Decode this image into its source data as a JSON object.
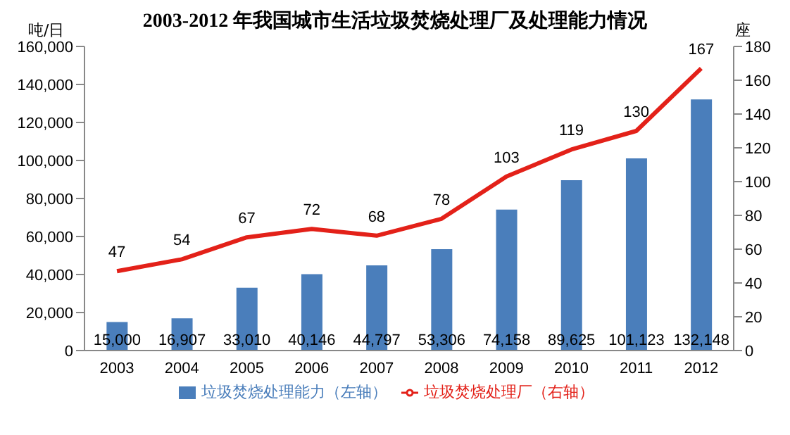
{
  "chart_data": {
    "type": "bar",
    "title": "2003-2012 年我国城市生活垃圾焚烧处理厂及处理能力情况",
    "ylabel": "吨/日",
    "y2label": "座",
    "categories": [
      "2003",
      "2004",
      "2005",
      "2006",
      "2007",
      "2008",
      "2009",
      "2010",
      "2011",
      "2012"
    ],
    "series": [
      {
        "name": "垃圾焚烧处理能力（左轴）",
        "color": "#4a7ebb",
        "values": [
          15000,
          16907,
          33010,
          40146,
          44797,
          53306,
          74158,
          89625,
          101123,
          132148
        ],
        "value_labels": [
          "15,000",
          "16,907",
          "33,010",
          "40,146",
          "44,797",
          "53,306",
          "74,158",
          "89,625",
          "101,123",
          "132,148"
        ]
      },
      {
        "name": "垃圾焚烧处理厂（右轴）",
        "type": "line",
        "axis": "y2",
        "color": "#e32119",
        "values": [
          47,
          54,
          67,
          72,
          68,
          78,
          103,
          119,
          130,
          167
        ]
      }
    ],
    "ylim": [
      0,
      160000
    ],
    "yticks": [
      {
        "value": 0,
        "label": "0"
      },
      {
        "value": 20000,
        "label": "20,000"
      },
      {
        "value": 40000,
        "label": "40,000"
      },
      {
        "value": 60000,
        "label": "60,000"
      },
      {
        "value": 80000,
        "label": "80,000"
      },
      {
        "value": 100000,
        "label": "100,000"
      },
      {
        "value": 120000,
        "label": "120,000"
      },
      {
        "value": 140000,
        "label": "140,000"
      },
      {
        "value": 160000,
        "label": "160,000"
      }
    ],
    "y2lim": [
      0,
      180
    ],
    "y2ticks": [
      0,
      20,
      40,
      60,
      80,
      100,
      120,
      140,
      160,
      180
    ],
    "data_labels": true,
    "legend": "bottom",
    "grid": false,
    "marker": "none"
  }
}
